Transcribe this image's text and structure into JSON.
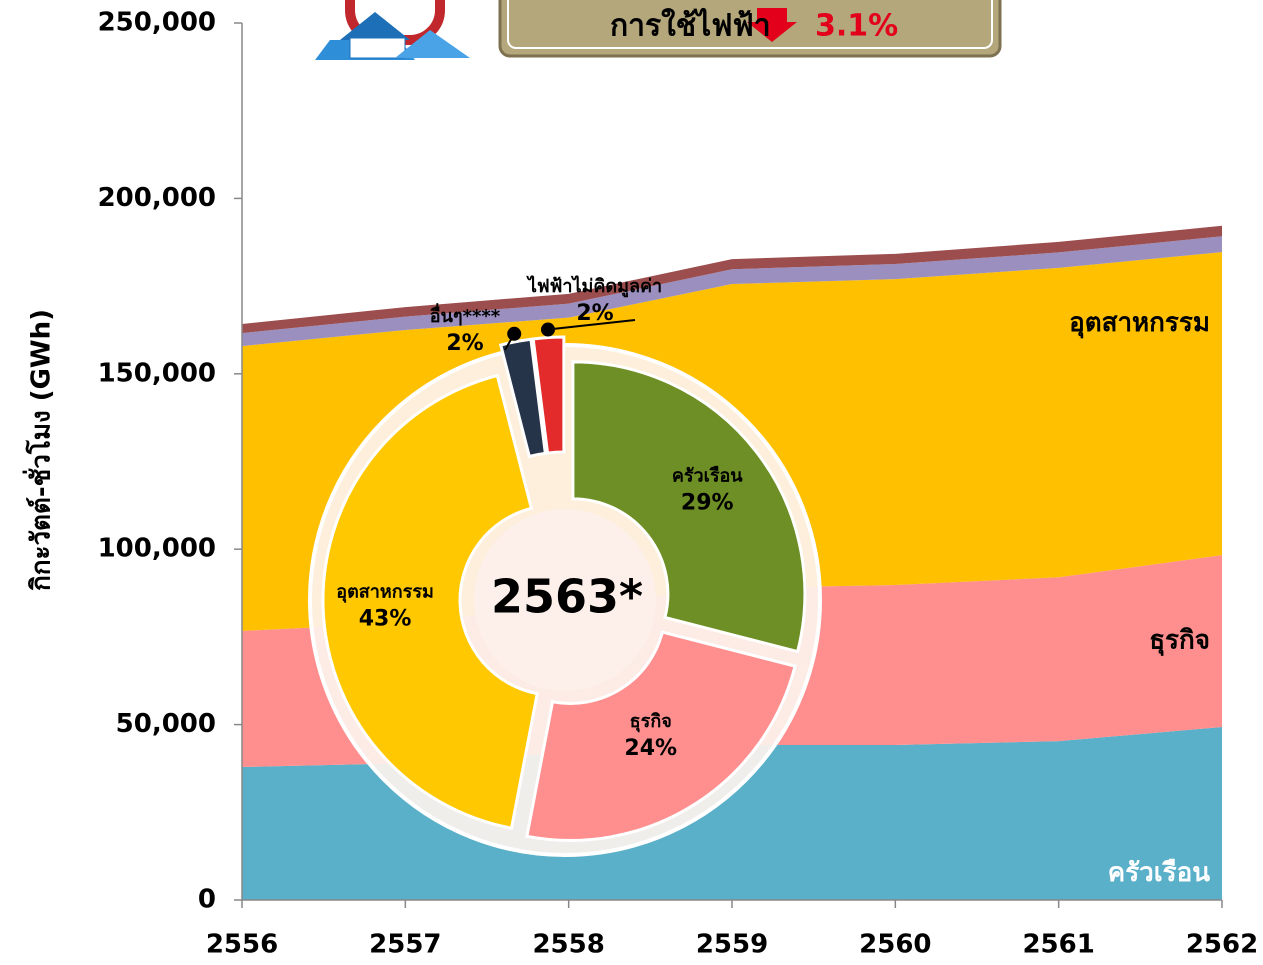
{
  "chart_data": [
    {
      "type": "area",
      "y_label": "กิกะวัตต์-ชั่วโมง (GWh)",
      "categories": [
        "2556",
        "2557",
        "2558",
        "2559",
        "2560",
        "2561",
        "2562"
      ],
      "series": [
        {
          "name": "ครัวเรือน",
          "color": "#5aafc9",
          "values": [
            37900,
            39000,
            42000,
            44200,
            44200,
            45300,
            49300
          ]
        },
        {
          "name": "ธุรกิจ",
          "color": "#ff8f8f",
          "values": [
            38800,
            40000,
            42000,
            44700,
            45600,
            46700,
            49000
          ]
        },
        {
          "name": "อุตสาหกรรม",
          "color": "#ffc000",
          "values": [
            81200,
            83500,
            82000,
            86700,
            87200,
            88200,
            86400
          ]
        },
        {
          "color": "#9b8fc0",
          "values": [
            3700,
            3800,
            4000,
            4200,
            4300,
            4400,
            4500
          ]
        },
        {
          "color": "#9c4d4d",
          "values": [
            2600,
            2700,
            2800,
            2900,
            2900,
            3000,
            3000
          ]
        }
      ],
      "ylim": [
        0,
        250000
      ],
      "yticks": [
        0,
        {
          "value": 50000,
          "label": "50,000"
        },
        {
          "value": 100000,
          "label": "100,000"
        },
        {
          "value": 150000,
          "label": "150,000"
        },
        {
          "value": 200000,
          "label": "200,000"
        },
        {
          "value": 250000,
          "label": "250,000"
        }
      ],
      "annotation": {
        "text": "การใช้ไฟฟ้า",
        "change": "3.1%"
      }
    },
    {
      "type": "pie",
      "title": "2563*",
      "categories": [
        "ครัวเรือน",
        "ธุรกิจ",
        "อุตสาหกรรม",
        "อื่นๆ****",
        "ไฟฟ้าไม่คิดมูลค่า"
      ],
      "values": [
        29,
        24,
        43,
        2,
        2
      ],
      "value_labels": [
        "29%",
        "24%",
        "43%",
        "2%",
        "2%"
      ],
      "colors": [
        "#6e8f25",
        "#ff8f8f",
        "#ffc800",
        "#26344a",
        "#e32b2b"
      ]
    }
  ]
}
